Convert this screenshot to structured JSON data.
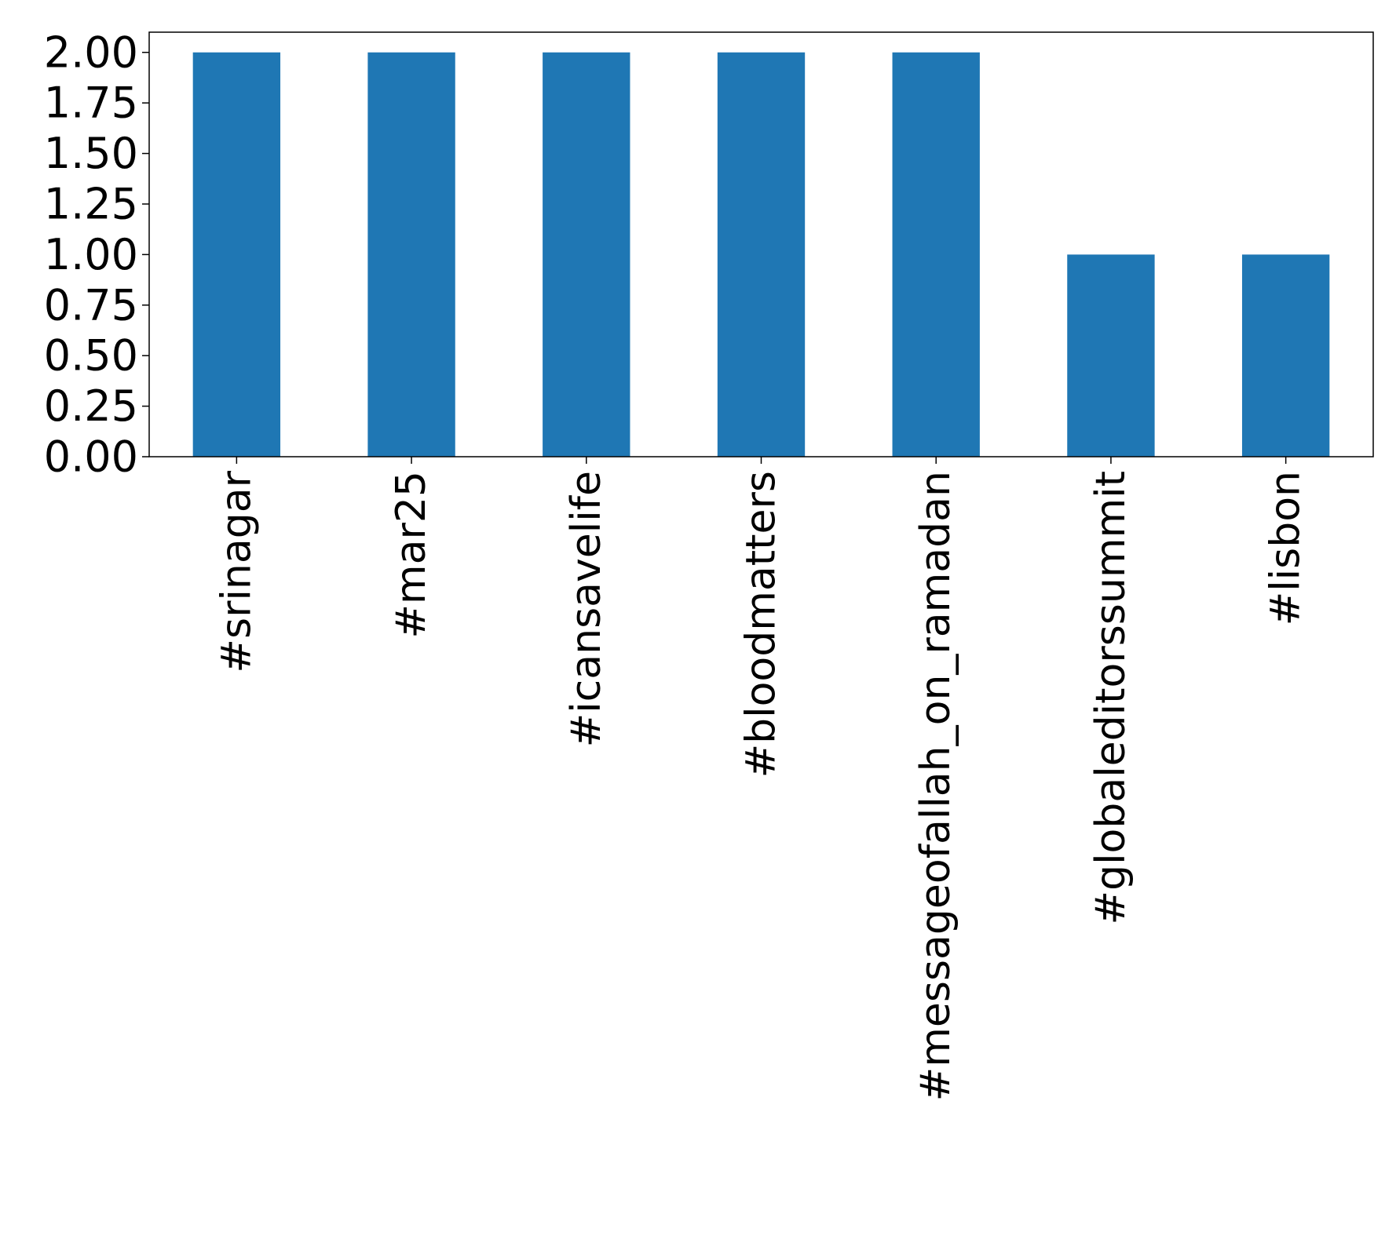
{
  "chart_data": {
    "type": "bar",
    "categories": [
      "#srinagar",
      "#mar25",
      "#icansavelife",
      "#bloodmatters",
      "#messageofallah_on_ramadan",
      "#globaleditorssummit",
      "#lisbon"
    ],
    "values": [
      2,
      2,
      2,
      2,
      2,
      1,
      1
    ],
    "ylim": [
      0,
      2.1
    ],
    "yticks": [
      "0.00",
      "0.25",
      "0.50",
      "0.75",
      "1.00",
      "1.25",
      "1.50",
      "1.75",
      "2.00"
    ],
    "title": "",
    "xlabel": "",
    "ylabel": "",
    "grid": false,
    "bar_color": "#1f77b4"
  }
}
